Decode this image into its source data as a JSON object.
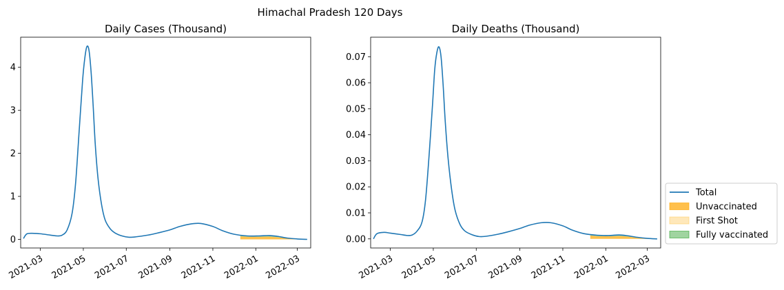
{
  "figure": {
    "suptitle": "Himachal Pradesh 120 Days"
  },
  "colors": {
    "total": "#1f77b4",
    "unvaccinated": "#ffa500",
    "first_shot": "#ffcc66",
    "fully_vaccinated": "#2ca02c"
  },
  "legend": {
    "placement": "right of second chart, bottom",
    "items": [
      {
        "key": "total",
        "label": "Total",
        "kind": "line"
      },
      {
        "key": "unvaccinated",
        "label": "Unvaccinated",
        "kind": "patch"
      },
      {
        "key": "first_shot",
        "label": "First Shot",
        "kind": "patch"
      },
      {
        "key": "fully_vaccinated",
        "label": "Fully vaccinated",
        "kind": "patch"
      }
    ]
  },
  "chart_data": [
    {
      "type": "line",
      "title": "Daily Cases (Thousand)",
      "xlim": [
        "2021-02-01",
        "2022-03-20"
      ],
      "ylim": [
        -0.2,
        4.7
      ],
      "xticks": [
        "2021-03",
        "2021-05",
        "2021-07",
        "2021-09",
        "2021-11",
        "2022-01",
        "2022-03"
      ],
      "yticks": [
        0,
        1,
        2,
        3,
        4
      ],
      "ytick_labels": [
        "0",
        "1",
        "2",
        "3",
        "4"
      ],
      "series": [
        {
          "name": "Total",
          "x": [
            "2021-02-05",
            "2021-02-10",
            "2021-02-20",
            "2021-03-01",
            "2021-03-15",
            "2021-03-25",
            "2021-04-01",
            "2021-04-08",
            "2021-04-15",
            "2021-04-20",
            "2021-04-25",
            "2021-04-30",
            "2021-05-03",
            "2021-05-06",
            "2021-05-09",
            "2021-05-12",
            "2021-05-15",
            "2021-05-18",
            "2021-05-22",
            "2021-05-27",
            "2021-06-01",
            "2021-06-08",
            "2021-06-15",
            "2021-06-25",
            "2021-07-05",
            "2021-07-15",
            "2021-08-01",
            "2021-08-15",
            "2021-09-01",
            "2021-09-15",
            "2021-10-01",
            "2021-10-15",
            "2021-11-01",
            "2021-11-15",
            "2021-12-01",
            "2021-12-20",
            "2022-01-05",
            "2022-01-20",
            "2022-02-01",
            "2022-02-15",
            "2022-03-01",
            "2022-03-15"
          ],
          "values": [
            0.02,
            0.13,
            0.14,
            0.13,
            0.1,
            0.08,
            0.1,
            0.22,
            0.6,
            1.3,
            2.5,
            3.7,
            4.2,
            4.48,
            4.4,
            3.9,
            3.1,
            2.2,
            1.4,
            0.8,
            0.45,
            0.25,
            0.15,
            0.08,
            0.05,
            0.06,
            0.1,
            0.15,
            0.22,
            0.3,
            0.36,
            0.37,
            0.3,
            0.2,
            0.12,
            0.08,
            0.08,
            0.09,
            0.07,
            0.03,
            0.01,
            0.0
          ]
        },
        {
          "name": "Unvaccinated",
          "x": [
            "2021-12-10",
            "2021-12-20",
            "2022-01-05",
            "2022-01-20",
            "2022-02-01",
            "2022-02-15",
            "2022-03-01",
            "2022-03-15"
          ],
          "values": [
            0.07,
            0.06,
            0.06,
            0.065,
            0.05,
            0.02,
            0.008,
            0.0
          ]
        },
        {
          "name": "First Shot",
          "x": [
            "2021-12-10",
            "2021-12-20",
            "2022-01-05",
            "2022-01-20",
            "2022-02-01",
            "2022-02-15",
            "2022-03-01",
            "2022-03-15"
          ],
          "values": [
            0.0,
            0.0,
            0.0,
            0.0,
            0.0,
            0.0,
            0.0,
            0.0
          ]
        },
        {
          "name": "Fully vaccinated",
          "x": [
            "2021-12-10",
            "2021-12-20",
            "2022-01-05",
            "2022-01-20",
            "2022-02-01",
            "2022-02-15",
            "2022-03-01",
            "2022-03-15"
          ],
          "values": [
            0.03,
            0.02,
            0.02,
            0.025,
            0.02,
            0.01,
            0.002,
            0.0
          ]
        }
      ]
    },
    {
      "type": "line",
      "title": "Daily Deaths (Thousand)",
      "xlim": [
        "2021-02-01",
        "2022-03-20"
      ],
      "ylim": [
        -0.0035,
        0.0775
      ],
      "xticks": [
        "2021-03",
        "2021-05",
        "2021-07",
        "2021-09",
        "2021-11",
        "2022-01",
        "2022-03"
      ],
      "yticks": [
        0,
        0.01,
        0.02,
        0.03,
        0.04,
        0.05,
        0.06,
        0.07
      ],
      "ytick_labels": [
        "0.00",
        "0.01",
        "0.02",
        "0.03",
        "0.04",
        "0.05",
        "0.06",
        "0.07"
      ],
      "series": [
        {
          "name": "Total",
          "x": [
            "2021-02-05",
            "2021-02-10",
            "2021-02-20",
            "2021-03-01",
            "2021-03-15",
            "2021-03-25",
            "2021-04-01",
            "2021-04-08",
            "2021-04-15",
            "2021-04-20",
            "2021-04-25",
            "2021-04-30",
            "2021-05-03",
            "2021-05-06",
            "2021-05-09",
            "2021-05-12",
            "2021-05-15",
            "2021-05-18",
            "2021-05-22",
            "2021-05-27",
            "2021-06-01",
            "2021-06-08",
            "2021-06-15",
            "2021-06-25",
            "2021-07-05",
            "2021-07-15",
            "2021-08-01",
            "2021-08-15",
            "2021-09-01",
            "2021-09-15",
            "2021-10-01",
            "2021-10-15",
            "2021-11-01",
            "2021-11-15",
            "2021-12-01",
            "2021-12-20",
            "2022-01-05",
            "2022-01-20",
            "2022-02-01",
            "2022-02-15",
            "2022-03-01",
            "2022-03-15"
          ],
          "values": [
            0.0,
            0.002,
            0.0025,
            0.0022,
            0.0017,
            0.0013,
            0.0015,
            0.003,
            0.0065,
            0.015,
            0.032,
            0.052,
            0.065,
            0.0715,
            0.0738,
            0.07,
            0.059,
            0.045,
            0.031,
            0.019,
            0.011,
            0.0055,
            0.003,
            0.0016,
            0.0009,
            0.001,
            0.0018,
            0.0027,
            0.004,
            0.0053,
            0.0062,
            0.0062,
            0.005,
            0.0033,
            0.002,
            0.0014,
            0.0013,
            0.0015,
            0.0012,
            0.0006,
            0.0002,
            0.0
          ]
        },
        {
          "name": "Unvaccinated",
          "x": [
            "2021-12-10",
            "2021-12-20",
            "2022-01-05",
            "2022-01-20",
            "2022-02-01",
            "2022-02-15",
            "2022-03-01",
            "2022-03-15"
          ],
          "values": [
            0.0013,
            0.001,
            0.001,
            0.0011,
            0.0009,
            0.0004,
            0.0001,
            0.0
          ]
        },
        {
          "name": "First Shot",
          "x": [
            "2021-12-10",
            "2021-12-20",
            "2022-01-05",
            "2022-01-20",
            "2022-02-01",
            "2022-02-15",
            "2022-03-01",
            "2022-03-15"
          ],
          "values": [
            0.0,
            0.0,
            0.0,
            0.0,
            0.0,
            0.0,
            0.0,
            0.0
          ]
        },
        {
          "name": "Fully vaccinated",
          "x": [
            "2021-12-10",
            "2021-12-20",
            "2022-01-05",
            "2022-01-20",
            "2022-02-01",
            "2022-02-15",
            "2022-03-01",
            "2022-03-15"
          ],
          "values": [
            0.0004,
            0.0003,
            0.0003,
            0.0004,
            0.0003,
            0.0001,
            0.0,
            0.0
          ]
        }
      ]
    }
  ]
}
